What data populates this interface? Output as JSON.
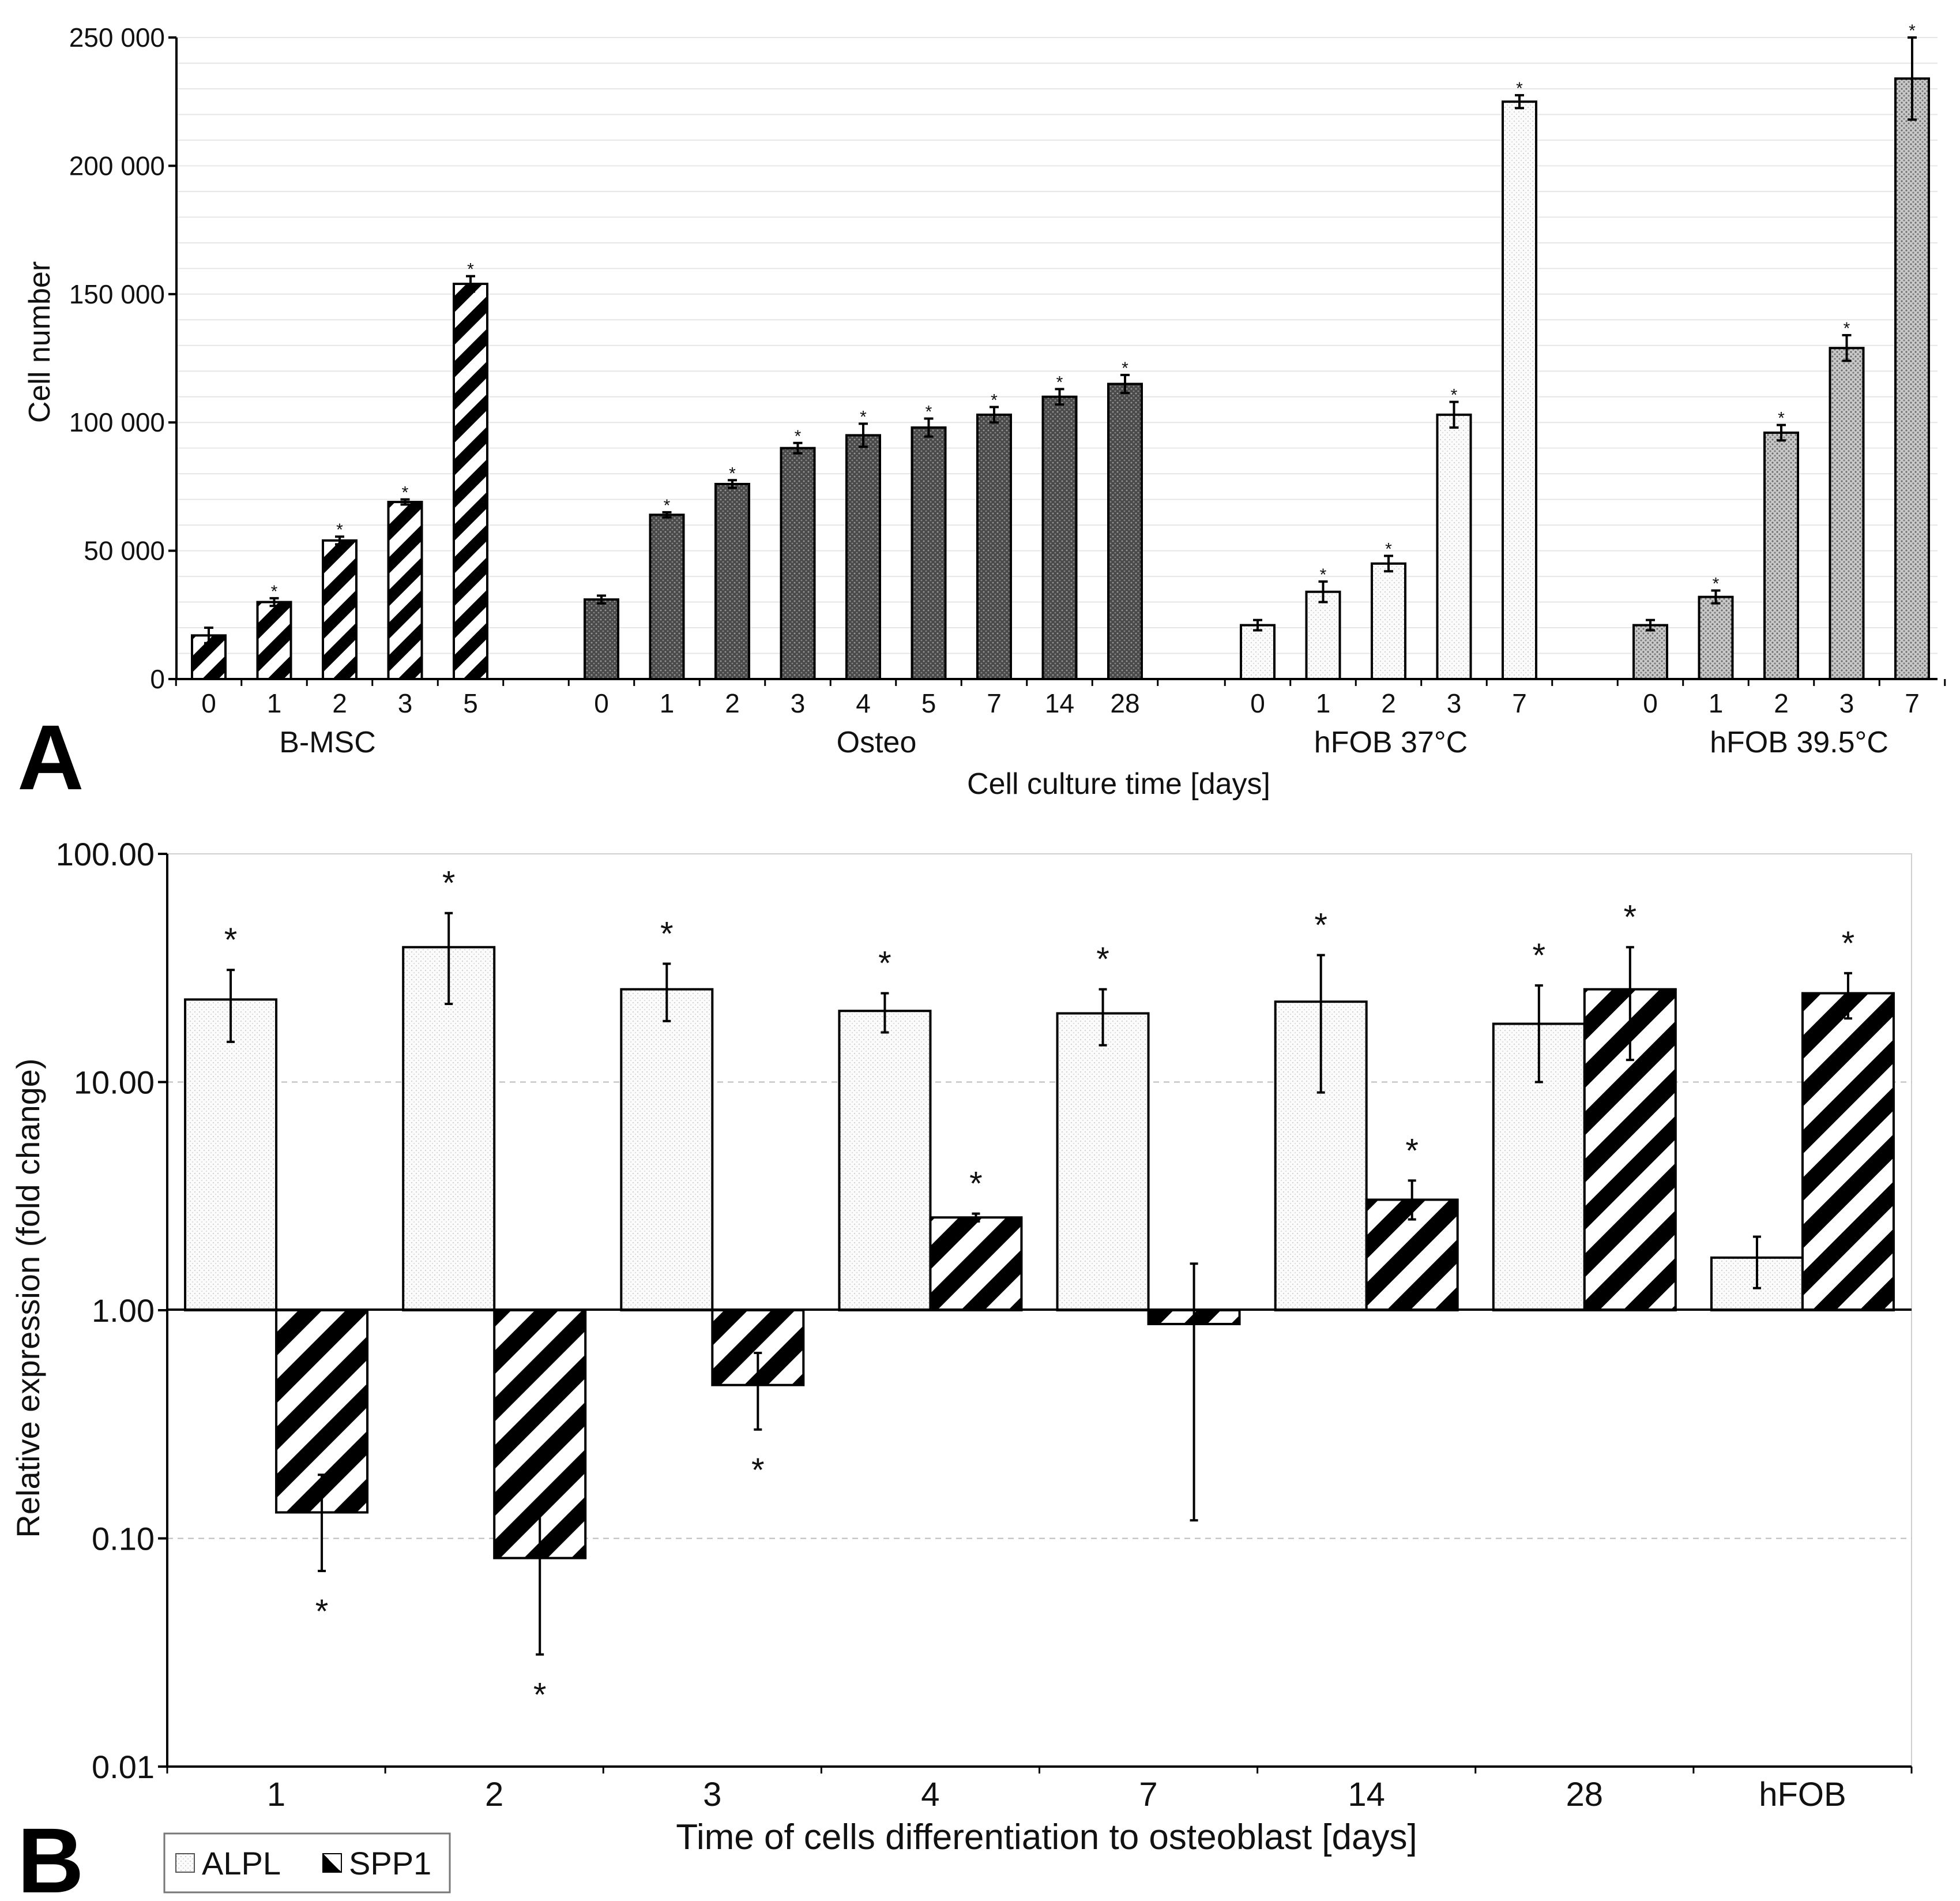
{
  "chart_data": [
    {
      "panel": "A",
      "type": "bar",
      "title": "",
      "xlabel": "Cell culture time [days]",
      "ylabel": "Cell number",
      "ylim": [
        0,
        250000
      ],
      "yticks": [
        "0",
        "50 000",
        "100 000",
        "150 000",
        "200 000",
        "250 000"
      ],
      "ytick_values": [
        0,
        50000,
        100000,
        150000,
        200000,
        250000
      ],
      "groups": [
        {
          "name": "B-MSC",
          "pattern": "diagonal",
          "categories": [
            "0",
            "1",
            "2",
            "3",
            "5"
          ],
          "values": [
            17000,
            30000,
            54000,
            69000,
            154000
          ],
          "errors": [
            3000,
            1500,
            1500,
            1000,
            3000
          ],
          "significant": [
            false,
            true,
            true,
            true,
            true
          ]
        },
        {
          "name": "Osteo",
          "pattern": "dark-stipple",
          "categories": [
            "0",
            "1",
            "2",
            "3",
            "4",
            "5",
            "7",
            "14",
            "28"
          ],
          "values": [
            31000,
            64000,
            76000,
            90000,
            95000,
            98000,
            103000,
            110000,
            115000
          ],
          "errors": [
            1500,
            1000,
            1500,
            2000,
            4500,
            3500,
            3000,
            3000,
            3500
          ],
          "significant": [
            false,
            true,
            true,
            true,
            true,
            true,
            true,
            true,
            true
          ]
        },
        {
          "name": "hFOB 37°C",
          "pattern": "light-stipple",
          "categories": [
            "0",
            "1",
            "2",
            "3",
            "7"
          ],
          "values": [
            21000,
            34000,
            45000,
            103000,
            225000
          ],
          "errors": [
            2000,
            4000,
            3000,
            5000,
            2500
          ],
          "significant": [
            false,
            true,
            true,
            true,
            true
          ]
        },
        {
          "name": "hFOB 39.5°C",
          "pattern": "medium-stipple",
          "categories": [
            "0",
            "1",
            "2",
            "3",
            "7"
          ],
          "values": [
            21000,
            32000,
            96000,
            129000,
            234000
          ],
          "errors": [
            2000,
            2500,
            3000,
            5000,
            16000
          ],
          "significant": [
            false,
            true,
            true,
            true,
            true
          ]
        }
      ]
    },
    {
      "panel": "B",
      "type": "bar",
      "title": "",
      "xlabel": "Time of cells differentiation to osteoblast [days]",
      "ylabel": "Relative expression (fold change)",
      "yscale": "log",
      "ylim": [
        0.01,
        100
      ],
      "yticks": [
        "0.01",
        "0.10",
        "1.00",
        "10.00",
        "100.00"
      ],
      "ytick_values": [
        0.01,
        0.1,
        1,
        10,
        100
      ],
      "categories": [
        "1",
        "2",
        "3",
        "4",
        "7",
        "14",
        "28",
        "hFOB"
      ],
      "legend_position": "bottom-left",
      "series": [
        {
          "name": "ALPL",
          "pattern": "light-stipple",
          "values": [
            23,
            39,
            25.5,
            20.5,
            20,
            22.5,
            18,
            1.7
          ],
          "err_low": [
            15,
            22,
            18.5,
            16.5,
            14.5,
            9,
            10,
            1.25
          ],
          "err_high": [
            31,
            55,
            33,
            24.5,
            25.5,
            36,
            26.5,
            2.1
          ],
          "significant": [
            true,
            true,
            true,
            true,
            true,
            true,
            true,
            false
          ]
        },
        {
          "name": "SPP1",
          "pattern": "diagonal",
          "values": [
            0.13,
            0.082,
            0.47,
            2.55,
            0.87,
            3.05,
            25.5,
            24.5
          ],
          "err_low": [
            0.072,
            0.031,
            0.3,
            2.45,
            0.12,
            2.5,
            12.5,
            19
          ],
          "err_high": [
            0.19,
            0.13,
            0.65,
            2.65,
            1.6,
            3.7,
            39,
            30
          ],
          "significant": [
            true,
            true,
            true,
            true,
            false,
            true,
            true,
            true
          ]
        }
      ]
    }
  ],
  "panel_labels": {
    "a": "A",
    "b": "B"
  },
  "significance_marker": "*"
}
